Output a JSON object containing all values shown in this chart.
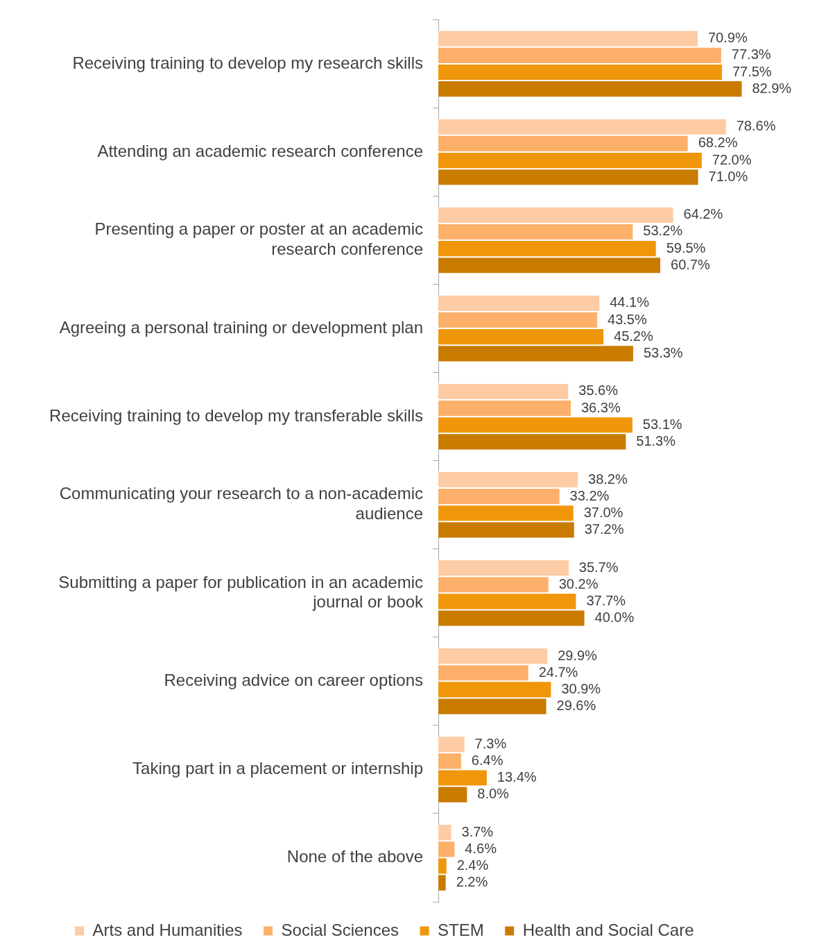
{
  "chart_data": {
    "type": "bar",
    "orientation": "horizontal",
    "categories": [
      "Receiving training to develop my research skills",
      "Attending an academic research conference",
      "Presenting a paper or poster at an academic research conference",
      "Agreeing a personal training or development plan",
      "Receiving training to develop my transferable skills",
      "Communicating your research to a non-academic audience",
      "Submitting a paper for publication in an academic journal or book",
      "Receiving advice on career options",
      "Taking part in a placement or internship",
      "None of the above"
    ],
    "series": [
      {
        "name": "Arts and Humanities",
        "color": "#fdcba4",
        "values": [
          70.9,
          78.6,
          64.2,
          44.1,
          35.6,
          38.2,
          35.7,
          29.9,
          7.3,
          3.7
        ],
        "value_labels": [
          "70.9%",
          "78.6%",
          "64.2%",
          "44.1%",
          "35.6%",
          "38.2%",
          "35.7%",
          "29.9%",
          "7.3%",
          "3.7%"
        ]
      },
      {
        "name": "Social Sciences",
        "color": "#fdb06a",
        "values": [
          77.3,
          68.2,
          53.2,
          43.5,
          36.3,
          33.2,
          30.2,
          24.7,
          6.4,
          4.6
        ],
        "value_labels": [
          "77.3%",
          "68.2%",
          "53.2%",
          "43.5%",
          "36.3%",
          "33.2%",
          "30.2%",
          "24.7%",
          "6.4%",
          "4.6%"
        ]
      },
      {
        "name": "STEM",
        "color": "#f0960a",
        "values": [
          77.5,
          72.0,
          59.5,
          45.2,
          53.1,
          37.0,
          37.7,
          30.9,
          13.4,
          2.4
        ],
        "value_labels": [
          "77.5%",
          "72.0%",
          "59.5%",
          "45.2%",
          "53.1%",
          "37.0%",
          "37.7%",
          "30.9%",
          "13.4%",
          "2.4%"
        ]
      },
      {
        "name": "Health and Social Care",
        "color": "#c97b00",
        "values": [
          82.9,
          71.0,
          60.7,
          53.3,
          51.3,
          37.2,
          40.0,
          29.6,
          8.0,
          2.2
        ],
        "value_labels": [
          "82.9%",
          "71.0%",
          "60.7%",
          "53.3%",
          "51.3%",
          "37.2%",
          "40.0%",
          "29.6%",
          "8.0%",
          "2.2%"
        ]
      }
    ],
    "tick_labels": "y",
    "legend": "bottom"
  }
}
